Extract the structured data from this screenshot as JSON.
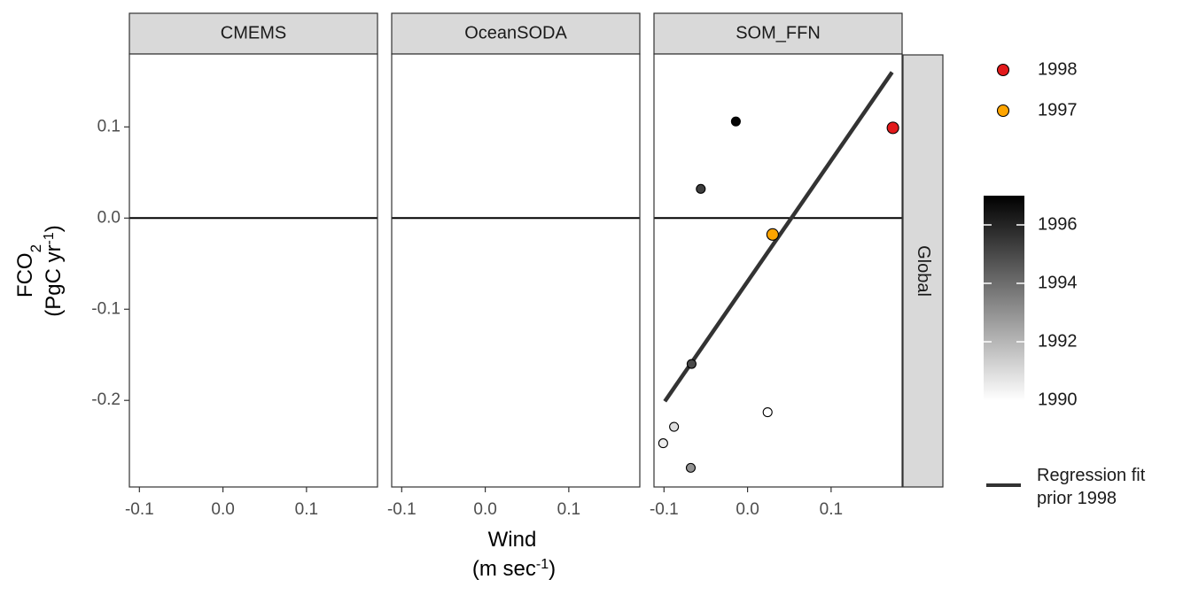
{
  "chart_data": {
    "type": "scatter",
    "facets": [
      "CMEMS",
      "OceanSODA",
      "SOM_FFN"
    ],
    "row_strip": "Global",
    "xlabel": "Wind",
    "xlabel_unit": "(m sec",
    "xlabel_unit_sup": "-1",
    "xlabel_unit_close": ")",
    "ylabel_main": "FCO",
    "ylabel_main_sub": "2",
    "ylabel_unit": "(PgC yr",
    "ylabel_unit_sup": "-1",
    "ylabel_unit_close": ")",
    "xlim": [
      -0.112,
      0.185
    ],
    "ylim": [
      -0.295,
      0.18
    ],
    "x_ticks": [
      -0.1,
      0.0,
      0.1
    ],
    "x_tick_labels": [
      "-0.1",
      "0.0",
      "0.1"
    ],
    "y_ticks": [
      0.1,
      0.0,
      -0.1,
      -0.2
    ],
    "y_tick_labels": [
      "0.1",
      "0.0",
      "-0.1",
      "-0.2"
    ],
    "hline_y": 0,
    "grid": false,
    "panels": [
      {
        "facet": "CMEMS",
        "points": [],
        "fit": null
      },
      {
        "facet": "OceanSODA",
        "points": [],
        "fit": null
      },
      {
        "facet": "SOM_FFN",
        "points": [
          {
            "x": -0.101,
            "y": -0.247,
            "year": 1990.5
          },
          {
            "x": -0.088,
            "y": -0.229,
            "year": 1990.9
          },
          {
            "x": -0.068,
            "y": -0.274,
            "year": 1993.0
          },
          {
            "x": -0.067,
            "y": -0.16,
            "year": 1995.0
          },
          {
            "x": -0.056,
            "y": 0.032,
            "year": 1995.3
          },
          {
            "x": -0.014,
            "y": 0.106,
            "year": 1996.9
          },
          {
            "x": 0.024,
            "y": -0.213,
            "year": 1990.0
          },
          {
            "x": 0.03,
            "y": -0.018,
            "year": 1997,
            "highlight": "1997"
          },
          {
            "x": 0.174,
            "y": 0.099,
            "year": 1998,
            "highlight": "1998"
          }
        ],
        "fit": {
          "x": [
            -0.099,
            0.173
          ],
          "y": [
            -0.201,
            0.16
          ]
        }
      }
    ],
    "year_color_scale": {
      "min": 1990,
      "max": 1997,
      "ticks": [
        1996,
        1994,
        1992,
        1990
      ],
      "tick_labels": [
        "1996",
        "1994",
        "1992",
        "1990"
      ],
      "low_color": "#ffffff",
      "high_color": "#000000"
    },
    "legend_points": [
      {
        "label": "1998",
        "color": "#e31a1c"
      },
      {
        "label": "1997",
        "color": "#ffa500"
      }
    ],
    "legend_line": {
      "label_line1": "Regression fit",
      "label_line2": "prior 1998",
      "color": "#333333"
    },
    "legend_placement": "right"
  }
}
